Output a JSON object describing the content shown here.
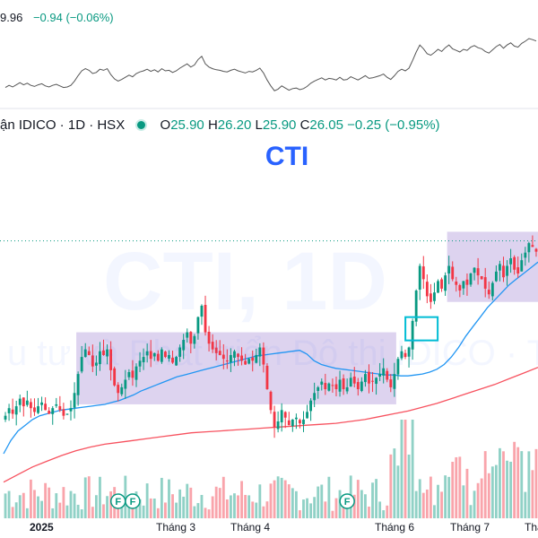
{
  "top_pane": {
    "change_text": "9.96",
    "change_abs": "−0.94",
    "change_pct": "(−0.06%)"
  },
  "header": {
    "symbol_text": "ận IDICO · 1D · HSX",
    "status_icon": "green-dot-icon",
    "open_label": "O",
    "open_value": "25.90",
    "high_label": "H",
    "high_value": "26.20",
    "low_label": "L",
    "low_value": "25.90",
    "close_label": "C",
    "close_value": "26.05",
    "change_abs": "−0.25",
    "change_pct": "(−0.95%)"
  },
  "title": "CTI",
  "watermark": {
    "line1": "CTI, 1D",
    "line2": "u tư và Phát triển Đô thị IDICO · Thuận"
  },
  "colors": {
    "up": "#089981",
    "down": "#f23645",
    "ma_short": "#2196f3",
    "ma_long": "#f7525f",
    "box_fill": "#d1c4e9",
    "highlight": "#00bcd4",
    "title": "#2962ff"
  },
  "markers": [
    "F",
    "F",
    "F"
  ],
  "chart_data": {
    "type": "candlestick",
    "title": "CTI",
    "x_axis_labels": [
      "2025",
      "Tháng 3",
      "Tháng 4",
      "Tháng 6",
      "Tháng 7",
      "Tha"
    ],
    "last_bar": {
      "open": 25.9,
      "high": 26.2,
      "low": 25.9,
      "close": 26.05,
      "change": -0.25,
      "change_pct": -0.95
    },
    "close_series": [
      17.4,
      17.8,
      17.5,
      17.9,
      18.3,
      17.9,
      18.2,
      17.8,
      17.6,
      17.9,
      18.1,
      17.7,
      17.5,
      17.8,
      18.0,
      17.7,
      17.4,
      17.5,
      17.8,
      18.6,
      19.6,
      20.5,
      20.9,
      20.6,
      20.0,
      20.2,
      20.8,
      20.6,
      20.9,
      19.8,
      19.0,
      18.6,
      18.9,
      19.3,
      19.7,
      19.4,
      20.0,
      20.3,
      20.5,
      20.8,
      20.4,
      20.7,
      20.3,
      20.9,
      20.5,
      20.6,
      20.2,
      20.5,
      21.0,
      21.4,
      21.8,
      21.2,
      21.6,
      22.6,
      23.2,
      21.8,
      21.2,
      20.9,
      20.7,
      20.6,
      20.4,
      20.3,
      20.6,
      20.8,
      20.5,
      20.3,
      20.1,
      20.4,
      20.3,
      20.6,
      21.0,
      20.1,
      18.8,
      17.7,
      16.8,
      17.1,
      17.7,
      17.3,
      16.9,
      17.2,
      17.3,
      17.0,
      17.2,
      17.6,
      18.2,
      18.6,
      18.9,
      19.2,
      18.8,
      19.1,
      19.0,
      18.8,
      19.3,
      18.8,
      18.9,
      19.4,
      19.1,
      18.8,
      19.2,
      19.6,
      19.1,
      19.2,
      19.4,
      19.6,
      19.9,
      19.3,
      18.9,
      19.6,
      20.4,
      20.8,
      20.5,
      21.0,
      22.4,
      24.0,
      25.3,
      24.6,
      23.7,
      23.4,
      23.9,
      24.5,
      24.1,
      24.8,
      25.3,
      24.6,
      24.3,
      24.0,
      24.5,
      24.3,
      24.9,
      25.2,
      24.8,
      24.6,
      24.1,
      23.8,
      24.4,
      25.0,
      25.4,
      24.7,
      25.3,
      25.7,
      25.1,
      24.9,
      25.6,
      26.0,
      26.5,
      26.3,
      26.05
    ],
    "ma_short_series": [
      15.4,
      16.1,
      16.6,
      16.9,
      17.2,
      17.4,
      17.5,
      17.6,
      17.7,
      17.75,
      17.8,
      17.85,
      17.9,
      17.95,
      18.0,
      18.1,
      18.2,
      18.35,
      18.5,
      18.7,
      18.85,
      19.0,
      19.15,
      19.3,
      19.45,
      19.55,
      19.65,
      19.75,
      19.85,
      19.95,
      20.05,
      20.15,
      20.25,
      20.35,
      20.45,
      20.55,
      20.6,
      20.65,
      20.7,
      20.75,
      20.8,
      20.85,
      20.65,
      20.3,
      20.1,
      20.0,
      19.9,
      19.85,
      19.8,
      19.75,
      19.7,
      19.65,
      19.6,
      19.55,
      19.55,
      19.5,
      19.5,
      19.55,
      19.6,
      19.7,
      19.85,
      20.1,
      20.5,
      21.0,
      21.6,
      22.1,
      22.6,
      23.1,
      23.5,
      23.9,
      24.3,
      24.6,
      24.9,
      25.2,
      25.5
    ],
    "ma_long_series": [
      13.9,
      14.3,
      14.7,
      15.0,
      15.3,
      15.55,
      15.75,
      15.9,
      16.0,
      16.1,
      16.2,
      16.3,
      16.4,
      16.5,
      16.55,
      16.6,
      16.65,
      16.7,
      16.75,
      16.8,
      16.85,
      16.9,
      16.95,
      17.0,
      17.1,
      17.2,
      17.35,
      17.5,
      17.65,
      17.85,
      18.05,
      18.3,
      18.55,
      18.8,
      19.05,
      19.35,
      19.65,
      19.95
    ],
    "consolidation_zones": [
      {
        "from_bar": 20,
        "to_bar": 107,
        "low": 18.0,
        "high": 21.8
      },
      {
        "from_bar": 122,
        "to_bar": 148,
        "low": 23.4,
        "high": 27.1
      }
    ],
    "reference_price": 26.05,
    "grid": false
  }
}
